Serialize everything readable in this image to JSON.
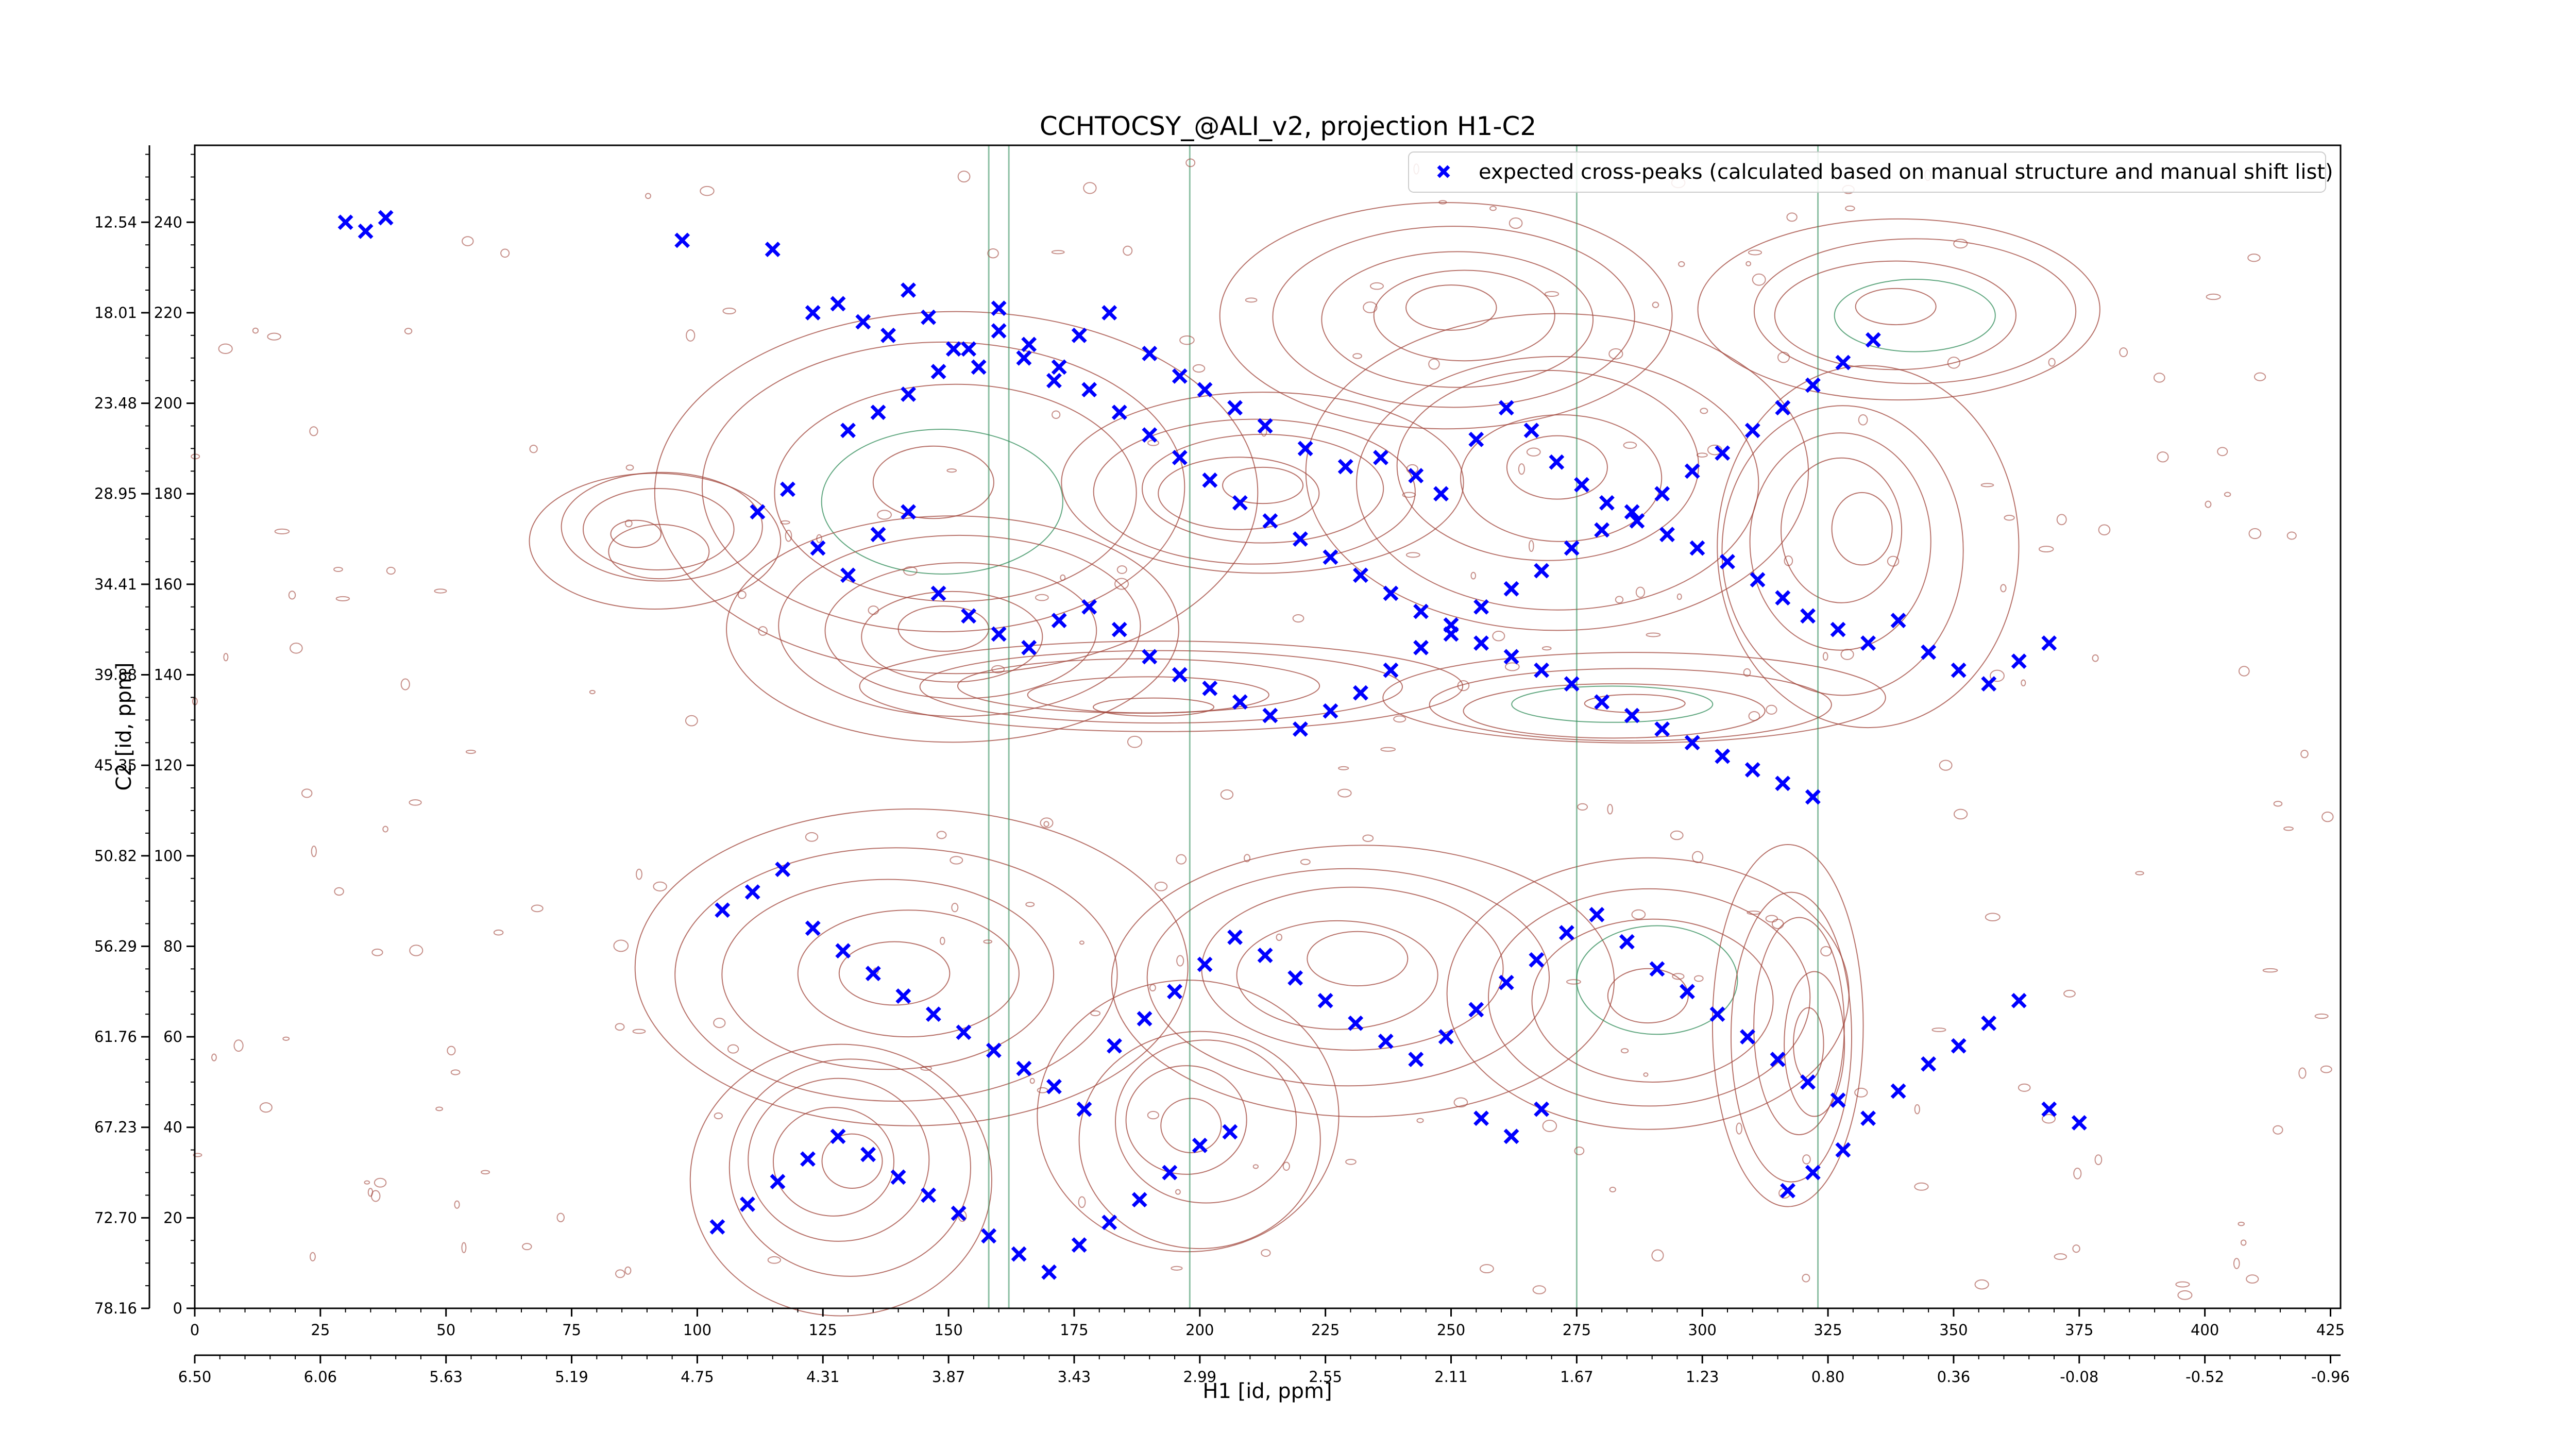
{
  "chart_data": {
    "type": "scatter",
    "title": "CCHTOCSY_@ALI_v2, projection H1-C2",
    "xlabel": "H1 [id, ppm]",
    "ylabel": "C2 [id, ppm]",
    "x_index": {
      "ticks": [
        0,
        25,
        50,
        75,
        100,
        125,
        150,
        175,
        200,
        225,
        250,
        275,
        300,
        325,
        350,
        375,
        400,
        425
      ],
      "xlim": [
        0,
        427
      ]
    },
    "x_ppm": {
      "ticks": [
        "6.50",
        "6.06",
        "5.63",
        "5.19",
        "4.75",
        "4.31",
        "3.87",
        "3.43",
        "2.99",
        "2.55",
        "2.11",
        "1.67",
        "1.23",
        "0.80",
        "0.36",
        "-0.08",
        "-0.52",
        "-0.96"
      ]
    },
    "y_index": {
      "ticks": [
        0,
        20,
        40,
        60,
        80,
        100,
        120,
        140,
        160,
        180,
        200,
        220,
        240
      ],
      "ylim": [
        0,
        257
      ]
    },
    "y_ppm": {
      "ticks": [
        "78.16",
        "72.70",
        "67.23",
        "61.76",
        "56.29",
        "50.82",
        "45.35",
        "39.88",
        "34.41",
        "28.95",
        "23.48",
        "18.01",
        "12.54"
      ]
    },
    "grid": false,
    "legend_position": "top-right",
    "series": [
      {
        "name": "expected cross-peaks (calculated based on manual structure and manual shift list)",
        "color": "#0000ff",
        "marker": "x-filled",
        "points": [
          [
            30,
            240
          ],
          [
            34,
            238
          ],
          [
            38,
            241
          ],
          [
            97,
            236
          ],
          [
            115,
            234
          ],
          [
            123,
            220
          ],
          [
            128,
            222
          ],
          [
            133,
            218
          ],
          [
            138,
            215
          ],
          [
            142,
            225
          ],
          [
            146,
            219
          ],
          [
            151,
            212
          ],
          [
            156,
            208
          ],
          [
            160,
            221
          ],
          [
            165,
            210
          ],
          [
            171,
            205
          ],
          [
            176,
            215
          ],
          [
            182,
            220
          ],
          [
            190,
            211
          ],
          [
            196,
            206
          ],
          [
            201,
            203
          ],
          [
            207,
            199
          ],
          [
            213,
            195
          ],
          [
            221,
            190
          ],
          [
            229,
            186
          ],
          [
            236,
            188
          ],
          [
            243,
            184
          ],
          [
            248,
            180
          ],
          [
            255,
            192
          ],
          [
            261,
            199
          ],
          [
            266,
            194
          ],
          [
            271,
            187
          ],
          [
            276,
            182
          ],
          [
            281,
            178
          ],
          [
            287,
            174
          ],
          [
            293,
            171
          ],
          [
            299,
            168
          ],
          [
            305,
            165
          ],
          [
            311,
            161
          ],
          [
            316,
            157
          ],
          [
            321,
            153
          ],
          [
            327,
            150
          ],
          [
            333,
            147
          ],
          [
            339,
            152
          ],
          [
            345,
            145
          ],
          [
            351,
            141
          ],
          [
            357,
            138
          ],
          [
            363,
            143
          ],
          [
            369,
            147
          ],
          [
            112,
            176
          ],
          [
            118,
            181
          ],
          [
            124,
            168
          ],
          [
            130,
            162
          ],
          [
            136,
            171
          ],
          [
            142,
            176
          ],
          [
            148,
            158
          ],
          [
            154,
            153
          ],
          [
            160,
            149
          ],
          [
            166,
            146
          ],
          [
            172,
            152
          ],
          [
            178,
            155
          ],
          [
            184,
            150
          ],
          [
            190,
            144
          ],
          [
            196,
            140
          ],
          [
            202,
            137
          ],
          [
            208,
            134
          ],
          [
            214,
            131
          ],
          [
            220,
            128
          ],
          [
            226,
            132
          ],
          [
            232,
            136
          ],
          [
            238,
            141
          ],
          [
            244,
            146
          ],
          [
            250,
            149
          ],
          [
            256,
            155
          ],
          [
            262,
            159
          ],
          [
            268,
            163
          ],
          [
            274,
            168
          ],
          [
            280,
            172
          ],
          [
            286,
            176
          ],
          [
            292,
            180
          ],
          [
            298,
            185
          ],
          [
            304,
            189
          ],
          [
            310,
            194
          ],
          [
            316,
            199
          ],
          [
            322,
            204
          ],
          [
            328,
            209
          ],
          [
            334,
            214
          ],
          [
            105,
            88
          ],
          [
            111,
            92
          ],
          [
            117,
            97
          ],
          [
            123,
            84
          ],
          [
            129,
            79
          ],
          [
            135,
            74
          ],
          [
            141,
            69
          ],
          [
            147,
            65
          ],
          [
            153,
            61
          ],
          [
            159,
            57
          ],
          [
            165,
            53
          ],
          [
            171,
            49
          ],
          [
            177,
            44
          ],
          [
            183,
            58
          ],
          [
            189,
            64
          ],
          [
            195,
            70
          ],
          [
            201,
            76
          ],
          [
            207,
            82
          ],
          [
            213,
            78
          ],
          [
            219,
            73
          ],
          [
            225,
            68
          ],
          [
            231,
            63
          ],
          [
            237,
            59
          ],
          [
            243,
            55
          ],
          [
            249,
            60
          ],
          [
            255,
            66
          ],
          [
            261,
            72
          ],
          [
            267,
            77
          ],
          [
            273,
            83
          ],
          [
            279,
            87
          ],
          [
            285,
            81
          ],
          [
            291,
            75
          ],
          [
            297,
            70
          ],
          [
            303,
            65
          ],
          [
            309,
            60
          ],
          [
            315,
            55
          ],
          [
            321,
            50
          ],
          [
            327,
            46
          ],
          [
            333,
            42
          ],
          [
            339,
            48
          ],
          [
            345,
            54
          ],
          [
            351,
            58
          ],
          [
            357,
            63
          ],
          [
            363,
            68
          ],
          [
            369,
            44
          ],
          [
            375,
            41
          ],
          [
            256,
            42
          ],
          [
            262,
            38
          ],
          [
            268,
            44
          ],
          [
            322,
            30
          ],
          [
            317,
            26
          ],
          [
            328,
            35
          ],
          [
            104,
            18
          ],
          [
            110,
            23
          ],
          [
            116,
            28
          ],
          [
            122,
            33
          ],
          [
            128,
            38
          ],
          [
            134,
            34
          ],
          [
            140,
            29
          ],
          [
            146,
            25
          ],
          [
            152,
            21
          ],
          [
            158,
            16
          ],
          [
            164,
            12
          ],
          [
            170,
            8
          ],
          [
            176,
            14
          ],
          [
            182,
            19
          ],
          [
            188,
            24
          ],
          [
            194,
            30
          ],
          [
            200,
            36
          ],
          [
            206,
            39
          ],
          [
            130,
            194
          ],
          [
            136,
            198
          ],
          [
            142,
            202
          ],
          [
            148,
            207
          ],
          [
            154,
            212
          ],
          [
            160,
            216
          ],
          [
            166,
            213
          ],
          [
            172,
            208
          ],
          [
            178,
            203
          ],
          [
            184,
            198
          ],
          [
            190,
            193
          ],
          [
            196,
            188
          ],
          [
            202,
            183
          ],
          [
            208,
            178
          ],
          [
            214,
            174
          ],
          [
            220,
            170
          ],
          [
            226,
            166
          ],
          [
            232,
            162
          ],
          [
            238,
            158
          ],
          [
            244,
            154
          ],
          [
            250,
            151
          ],
          [
            256,
            147
          ],
          [
            262,
            144
          ],
          [
            268,
            141
          ],
          [
            274,
            138
          ],
          [
            280,
            134
          ],
          [
            286,
            131
          ],
          [
            292,
            128
          ],
          [
            298,
            125
          ],
          [
            304,
            122
          ],
          [
            310,
            119
          ],
          [
            316,
            116
          ],
          [
            322,
            113
          ]
        ]
      }
    ]
  }
}
